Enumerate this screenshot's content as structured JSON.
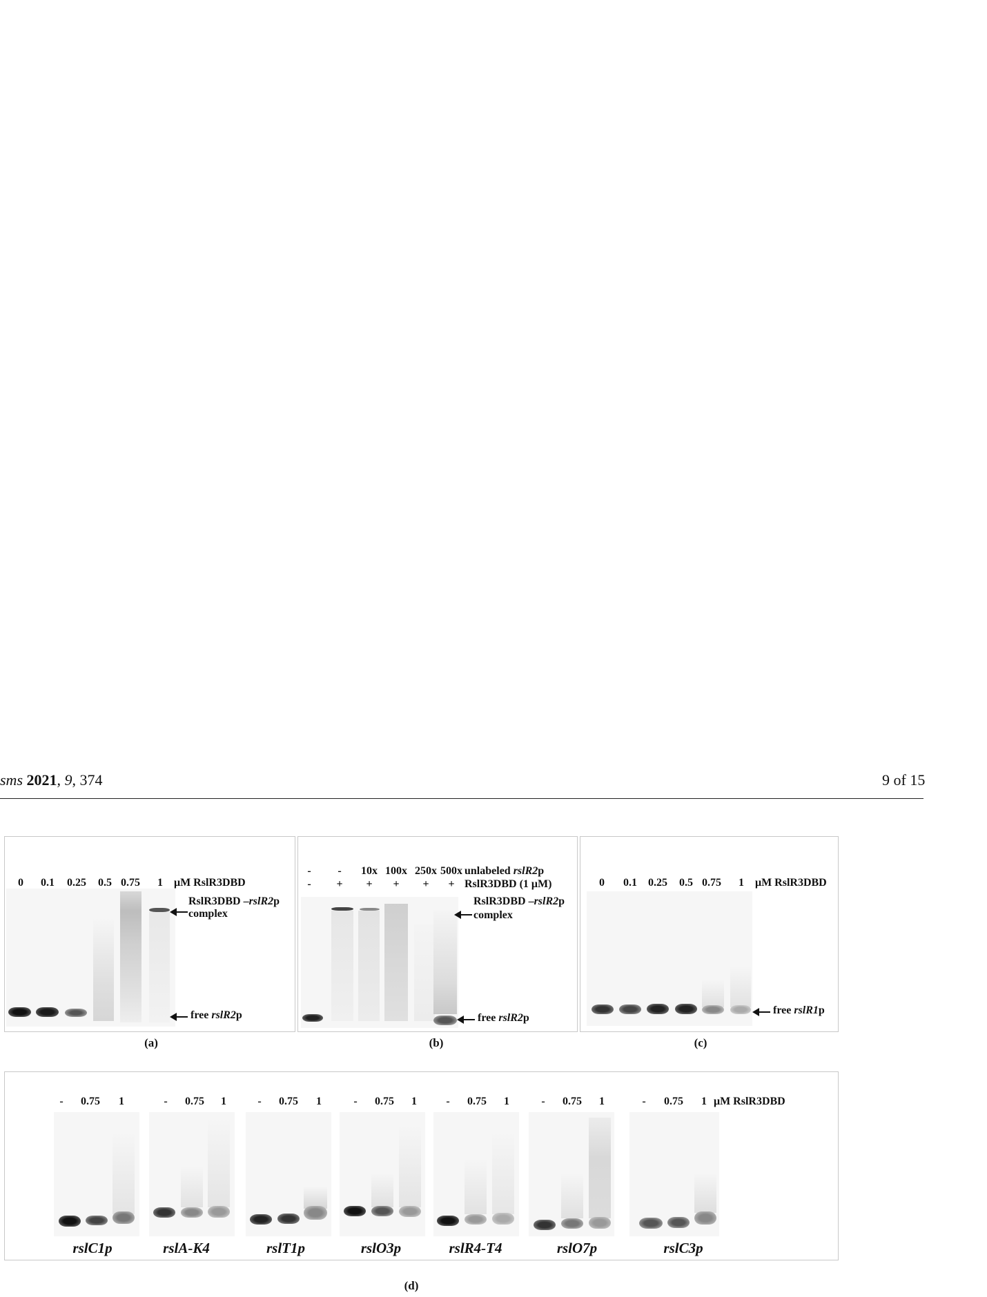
{
  "header": {
    "journal_fragment": "sms",
    "year": "2021",
    "volume": "9",
    "article": "374",
    "page": "9 of 15"
  },
  "panel_a": {
    "lanes": [
      "0",
      "0.1",
      "0.25",
      "0.5",
      "0.75",
      "1"
    ],
    "unit_label": "μM RslR3DBD",
    "complex_label_1": "RslR3DBD –",
    "complex_label_gene": "rslR2",
    "complex_label_p": "p",
    "complex_label_2": "complex",
    "free_label": "free ",
    "free_gene": "rslR2",
    "free_p": "p",
    "caption": "(a)"
  },
  "panel_b": {
    "row1": [
      "-",
      "-",
      "10x",
      "100x",
      "250x",
      "500x"
    ],
    "row1_label": "unlabeled ",
    "row1_gene": "rslR2",
    "row1_p": "p",
    "row2": [
      "-",
      "+",
      "+",
      "+",
      "+",
      "+"
    ],
    "row2_label": "RslR3DBD (1 μM)",
    "complex_label_1": "RslR3DBD –",
    "complex_label_gene": "rslR2",
    "complex_label_p": "p",
    "complex_label_2": "complex",
    "free_label": "free ",
    "free_gene": "rslR2",
    "free_p": "p",
    "caption": "(b)"
  },
  "panel_c": {
    "lanes": [
      "0",
      "0.1",
      "0.25",
      "0.5",
      "0.75",
      "1"
    ],
    "unit_label": "μM RslR3DBD",
    "free_label": "free ",
    "free_gene": "rslR1",
    "free_p": "p",
    "caption": "(c)"
  },
  "panel_d": {
    "groups": [
      {
        "lanes": [
          "-",
          "0.75",
          "1"
        ],
        "promoter": "rslC1p"
      },
      {
        "lanes": [
          "-",
          "0.75",
          "1"
        ],
        "promoter": "rslA-K4"
      },
      {
        "lanes": [
          "-",
          "0.75",
          "1"
        ],
        "promoter": "rslT1p"
      },
      {
        "lanes": [
          "-",
          "0.75",
          "1"
        ],
        "promoter": "rslO3p"
      },
      {
        "lanes": [
          "-",
          "0.75",
          "1"
        ],
        "promoter": "rslR4-T4"
      },
      {
        "lanes": [
          "-",
          "0.75",
          "1"
        ],
        "promoter": "rslO7p"
      },
      {
        "lanes": [
          "-",
          "0.75",
          "1"
        ],
        "promoter": "rslC3p"
      }
    ],
    "unit_label": "μM RslR3DBD",
    "caption": "(d)"
  }
}
